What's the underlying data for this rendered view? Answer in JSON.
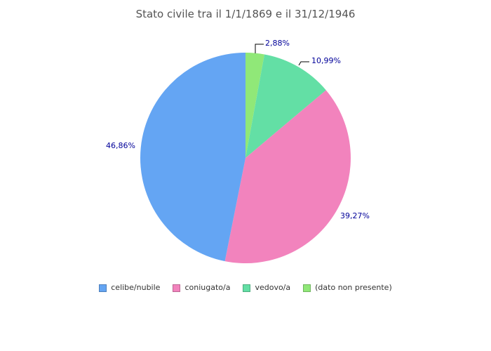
{
  "title": "Stato civile tra il 1/1/1869 e il 31/12/1946",
  "chart_data": {
    "type": "pie",
    "title": "Stato civile tra il 1/1/1869 e il 31/12/1946",
    "unit": "%",
    "total": 100,
    "start_angle_deg": 0,
    "direction": "clockwise",
    "order_clockwise_from_top": [
      "(dato non presente)",
      "vedovo/a",
      "coniugato/a",
      "celibe/nubile"
    ],
    "legend_position": "bottom",
    "background_color": "#FFFFFF",
    "title_color": "#545454",
    "label_color": "#000099",
    "leader_line_color": "#000000",
    "slices": [
      {
        "id": "celibe-nubile",
        "label": "celibe/nubile",
        "value": 46.86,
        "pct_label": "46,86%",
        "color": "#64A5F3",
        "border_color": "#4E80BC"
      },
      {
        "id": "coniugato",
        "label": "coniugato/a",
        "value": 39.27,
        "pct_label": "39,27%",
        "color": "#F283BD",
        "border_color": "#BC6793"
      },
      {
        "id": "vedovo",
        "label": "vedovo/a",
        "value": 10.99,
        "pct_label": "10,99%",
        "color": "#63DFA5",
        "border_color": "#4EAD80"
      },
      {
        "id": "dato-non-presente",
        "label": "(dato non presente)",
        "value": 2.88,
        "pct_label": "2,88%",
        "color": "#90E878",
        "border_color": "#70B45E"
      }
    ]
  }
}
